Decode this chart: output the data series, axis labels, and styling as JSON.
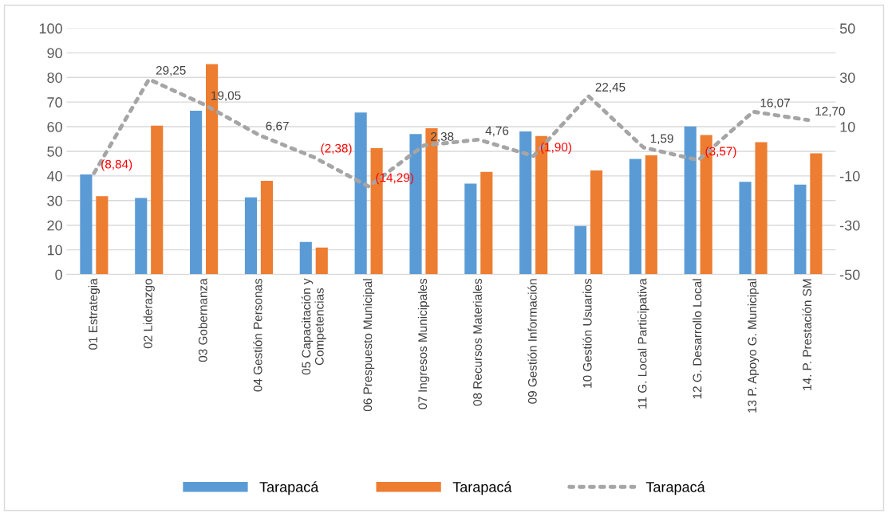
{
  "chart_data": {
    "type": "bar",
    "categories": [
      "01 Estrategia",
      "02 Liderazgo",
      "03 Gobernanza",
      "04 Gestión Personas",
      "05 Capacitación y\nCompetencias",
      "06 Prespuesto Municipal",
      "07 Ingresos Municipales",
      "08 Recursos Materiales",
      "09 Gestión Información",
      "10 Gestión Usuarios",
      "11 G. Local Participativa",
      "12 G. Desarrollo Local",
      "13 P. Apoyo G. Municipal",
      "14. P. Prestación SM"
    ],
    "series": [
      {
        "name": "Tarapacá",
        "color": "#5b9bd5",
        "values": [
          40.6,
          31.1,
          66.5,
          31.3,
          13.2,
          65.8,
          57.0,
          36.9,
          58.1,
          19.7,
          46.9,
          60.1,
          37.6,
          36.5
        ]
      },
      {
        "name": "Tarapacá",
        "color": "#ed7d31",
        "values": [
          31.8,
          60.4,
          85.4,
          38.0,
          10.9,
          51.3,
          59.4,
          41.7,
          56.2,
          42.2,
          48.4,
          56.6,
          53.7,
          49.2
        ]
      },
      {
        "name": "Tarapacá",
        "type": "line",
        "axis": "y2",
        "color": "#a5a5a5",
        "line_style": "dotted",
        "values": [
          -8.84,
          29.25,
          19.05,
          6.67,
          -2.38,
          -14.29,
          2.38,
          4.76,
          -1.9,
          22.45,
          1.59,
          -3.57,
          16.07,
          12.7
        ],
        "value_labels": [
          "(8,84)",
          "29,25",
          "19,05",
          "6,67",
          "(2,38)",
          "(14,29)",
          "2,38",
          "4,76",
          "(1,90)",
          "22,45",
          "1,59",
          "(3,57)",
          "16,07",
          "12,70"
        ]
      }
    ],
    "ylim": [
      0,
      100
    ],
    "yticks": [
      0,
      10,
      20,
      30,
      40,
      50,
      60,
      70,
      80,
      90,
      100
    ],
    "y2lim": [
      -50,
      50
    ],
    "y2ticks": [
      -50,
      -30,
      -10,
      10,
      30,
      50
    ],
    "grid": "y",
    "legend": "bottom"
  }
}
